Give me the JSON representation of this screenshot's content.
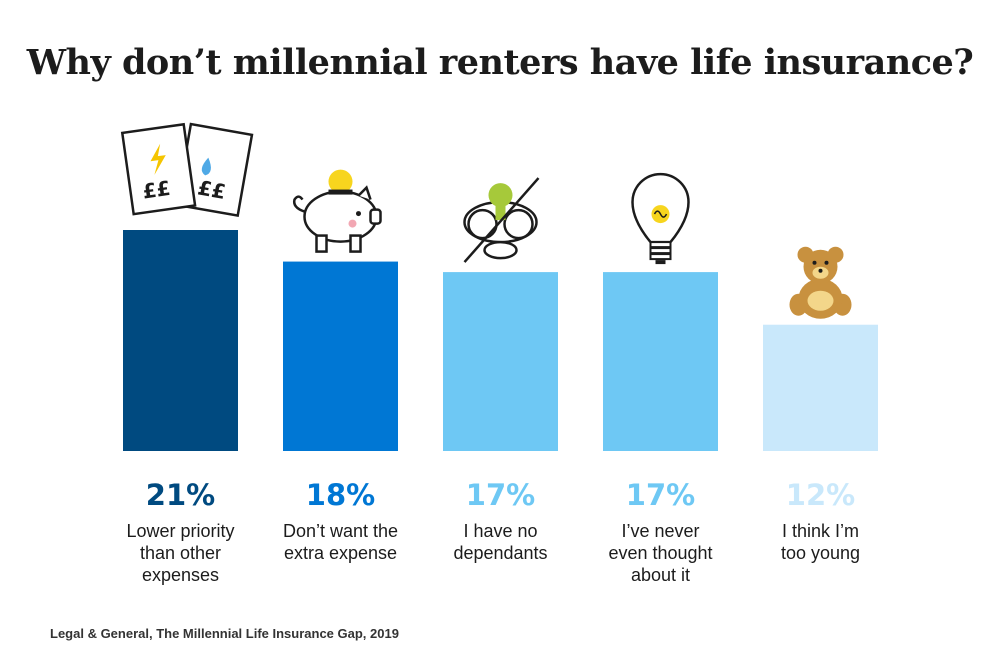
{
  "chart_data": {
    "type": "bar",
    "title": "Why don’t millennial renters have life insurance?",
    "categories": [
      [
        "Lower priority",
        "than other",
        "expenses"
      ],
      [
        "Don’t want the",
        "extra expense"
      ],
      [
        "I have no",
        "dependants"
      ],
      [
        "I’ve never",
        "even thought",
        "about it"
      ],
      [
        "I think I’m",
        "too young"
      ]
    ],
    "values": [
      21,
      18,
      17,
      17,
      12
    ],
    "value_labels": [
      "21%",
      "18%",
      "17%",
      "17%",
      "12%"
    ],
    "bar_colors": [
      "#004a80",
      "#0077d4",
      "#6ec8f4",
      "#6ec8f4",
      "#c9e8fb"
    ],
    "label_colors": [
      "#004a80",
      "#0077d4",
      "#6ec8f4",
      "#6ec8f4",
      "#c9e8fb"
    ],
    "icons": [
      "bills-icon",
      "piggy-bank-icon",
      "no-baby-icon",
      "light-bulb-icon",
      "teddy-bear-icon"
    ],
    "bill_symbol": "££",
    "xlabel": "",
    "ylabel": "",
    "ylim": [
      0,
      21
    ]
  },
  "source": "Legal & General, The Millennial Life Insurance Gap, 2019"
}
